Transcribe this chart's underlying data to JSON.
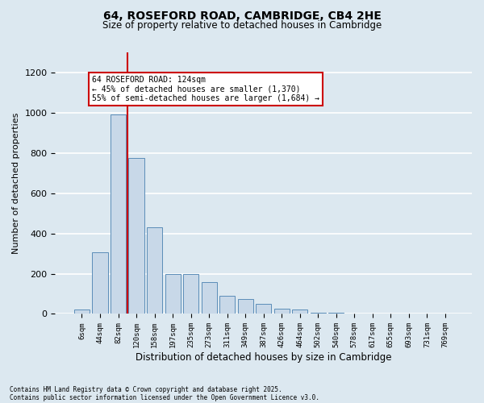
{
  "title1": "64, ROSEFORD ROAD, CAMBRIDGE, CB4 2HE",
  "title2": "Size of property relative to detached houses in Cambridge",
  "xlabel": "Distribution of detached houses by size in Cambridge",
  "ylabel": "Number of detached properties",
  "categories": [
    "6sqm",
    "44sqm",
    "82sqm",
    "120sqm",
    "158sqm",
    "197sqm",
    "235sqm",
    "273sqm",
    "311sqm",
    "349sqm",
    "387sqm",
    "426sqm",
    "464sqm",
    "502sqm",
    "540sqm",
    "578sqm",
    "617sqm",
    "655sqm",
    "693sqm",
    "731sqm",
    "769sqm"
  ],
  "values": [
    20,
    305,
    990,
    775,
    430,
    200,
    200,
    160,
    90,
    75,
    50,
    25,
    20,
    5,
    5,
    0,
    0,
    0,
    0,
    0,
    2
  ],
  "bar_color": "#c8d8e8",
  "bar_edge_color": "#5b8db8",
  "background_color": "#dce8f0",
  "grid_color": "#ffffff",
  "annotation_line1": "64 ROSEFORD ROAD: 124sqm",
  "annotation_line2": "← 45% of detached houses are smaller (1,370)",
  "annotation_line3": "55% of semi-detached houses are larger (1,684) →",
  "annotation_box_color": "#ffffff",
  "annotation_box_edge_color": "#cc0000",
  "red_line_x": 2.5,
  "ylim": [
    0,
    1300
  ],
  "yticks": [
    0,
    200,
    400,
    600,
    800,
    1000,
    1200
  ],
  "footer1": "Contains HM Land Registry data © Crown copyright and database right 2025.",
  "footer2": "Contains public sector information licensed under the Open Government Licence v3.0."
}
